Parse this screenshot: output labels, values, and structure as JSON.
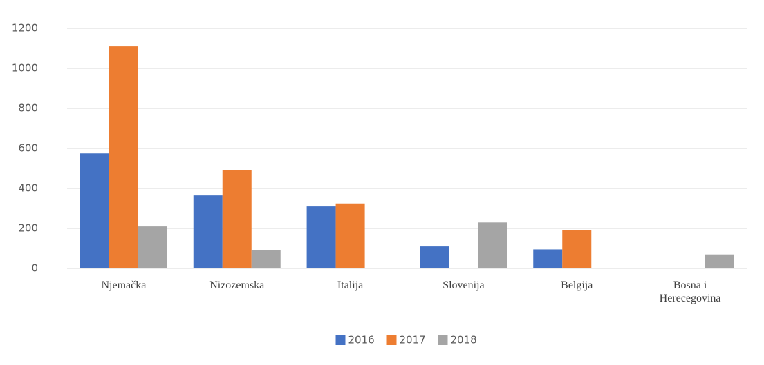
{
  "chart_data": {
    "type": "bar",
    "categories": [
      "Njemačka",
      "Nizozemska",
      "Italija",
      "Slovenija",
      "Belgija",
      "Bosna i Herecegovina"
    ],
    "series": [
      {
        "name": "2016",
        "color": "#4472c4",
        "values": [
          575,
          365,
          310,
          110,
          95,
          0
        ]
      },
      {
        "name": "2017",
        "color": "#ed7d31",
        "values": [
          1110,
          490,
          325,
          0,
          190,
          0
        ]
      },
      {
        "name": "2018",
        "color": "#a5a5a5",
        "values": [
          210,
          90,
          3,
          230,
          0,
          70
        ]
      }
    ],
    "ylim": [
      0,
      1200
    ],
    "yticks": [
      0,
      200,
      400,
      600,
      800,
      1000,
      1200
    ],
    "grid": true,
    "legend": "bottom"
  }
}
